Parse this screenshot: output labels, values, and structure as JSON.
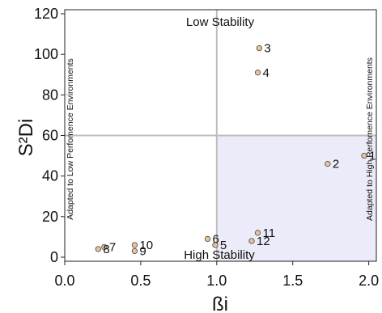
{
  "chart_data": {
    "type": "scatter",
    "xlabel": "ßi",
    "ylabel": "S²Di",
    "xlim": [
      0.0,
      2.05
    ],
    "ylim": [
      -2,
      122
    ],
    "x_ticks": [
      "0.0",
      "0.5",
      "1.0",
      "1.5",
      "2.0"
    ],
    "x_tick_values": [
      0.0,
      0.5,
      1.0,
      1.5,
      2.0
    ],
    "y_ticks": [
      "0",
      "20",
      "40",
      "60",
      "80",
      "100",
      "120"
    ],
    "y_tick_values": [
      0,
      20,
      40,
      60,
      80,
      100,
      120
    ],
    "reference_lines": {
      "x": 1.0,
      "y": 60
    },
    "shaded_quadrant": {
      "x_from": 1.0,
      "x_to": 2.05,
      "y_from": -2,
      "y_to": 60,
      "color": "#ecebf9"
    },
    "point_color": "#e8c49a",
    "line_color": "#bdbdbd",
    "annotations": {
      "top": "Low Stability",
      "bottom": "High Stability",
      "left": "Adapted to Low Perfomence Environments",
      "right": "Adapted to High Perfomence Environments"
    },
    "points": [
      {
        "label": "1",
        "x": 1.97,
        "y": 50
      },
      {
        "label": "2",
        "x": 1.73,
        "y": 46
      },
      {
        "label": "3",
        "x": 1.28,
        "y": 103
      },
      {
        "label": "4",
        "x": 1.27,
        "y": 91
      },
      {
        "label": "5",
        "x": 0.99,
        "y": 6
      },
      {
        "label": "6",
        "x": 0.94,
        "y": 9
      },
      {
        "label": "7",
        "x": 0.26,
        "y": 5
      },
      {
        "label": "8",
        "x": 0.22,
        "y": 4
      },
      {
        "label": "9",
        "x": 0.46,
        "y": 3
      },
      {
        "label": "10",
        "x": 0.46,
        "y": 6
      },
      {
        "label": "11",
        "x": 1.27,
        "y": 12
      },
      {
        "label": "12",
        "x": 1.23,
        "y": 8
      }
    ]
  }
}
